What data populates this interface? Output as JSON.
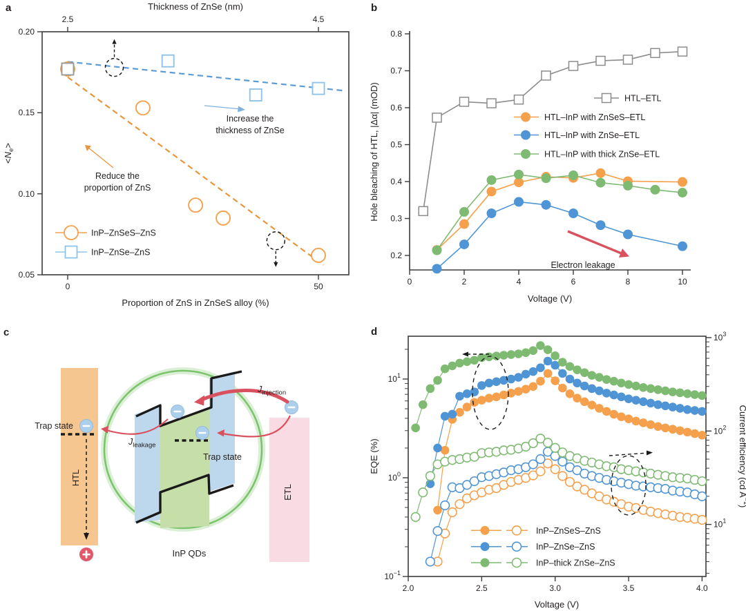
{
  "panel_letters": {
    "a": "a",
    "b": "b",
    "c": "c",
    "d": "d"
  },
  "colors": {
    "orange": "#F5A04C",
    "blue": "#4F94D5",
    "light_blue": "#8FC3E9",
    "green": "#7FBA72",
    "gray": "#8C8C8C",
    "red": "#D9505E"
  },
  "panel_a": {
    "top_axis_title": "Thickness of ZnSe (nm)",
    "top_ticks": [
      "2.5",
      "4.5"
    ],
    "y_ticks": [
      "0.20",
      "0.15",
      "0.10",
      "0.05"
    ],
    "x_ticks": [
      "0",
      "50"
    ],
    "x_axis_title": "Proportion of ZnS in ZnSeS alloy (%)",
    "y_label": {
      "pre": "<",
      "n": "N",
      "sub": "e",
      "post": ">"
    },
    "ann_increase": [
      "Increase the",
      "thickness of ZnSe"
    ],
    "ann_reduce": [
      "Reduce the",
      "proportion of ZnS"
    ],
    "legend": [
      "InP–ZnSeS–ZnS",
      "InP–ZnSe–ZnS"
    ]
  },
  "panel_b": {
    "y_label": "Hole bleaching of HTL, |Δα| (mOD)",
    "y_ticks": [
      "0.8",
      "0.7",
      "0.6",
      "0.5",
      "0.4",
      "0.3",
      "0.2"
    ],
    "x_ticks": [
      "0",
      "2",
      "4",
      "6",
      "8",
      "10"
    ],
    "x_axis_title": "Voltage (V)",
    "legend": [
      "HTL–ETL",
      "HTL–InP with ZnSeS–ETL",
      "HTL–InP with ZnSe–ETL",
      "HTL–InP with thick ZnSe–ETL"
    ],
    "ann_leakage": "Electron leakage"
  },
  "panel_c": {
    "trap_left": "Trap state",
    "trap_qd": "Trap state",
    "htl": "HTL",
    "etl": "ETL",
    "inp_qds": "InP QDs",
    "j_injection": {
      "j": "J",
      "sub": "injection"
    },
    "j_leakage": {
      "j": "J",
      "sub": "leakage"
    }
  },
  "panel_d": {
    "y_left_label": "EQE (%)",
    "y_right_label": {
      "pre": "Current efficiency (cd A",
      "sup": "−1",
      "post": ")"
    },
    "left_ticks": [
      {
        "b": "10",
        "e": "1"
      },
      {
        "b": "10",
        "e": "0"
      },
      {
        "b": "10",
        "e": "−1"
      }
    ],
    "right_ticks": [
      {
        "b": "10",
        "e": "3"
      },
      {
        "b": "10",
        "e": "2"
      },
      {
        "b": "10",
        "e": "1"
      }
    ],
    "x_ticks": [
      "2.0",
      "2.5",
      "3.0",
      "3.5",
      "4.0"
    ],
    "x_axis_title": "Voltage (V)",
    "legend": [
      "InP–ZnSeS–ZnS",
      "InP–ZnSe–ZnS",
      "InP–thick ZnSe–ZnS"
    ]
  },
  "chart_data": [
    {
      "id": "a",
      "type": "scatter",
      "xlabel": "Proportion of ZnS in ZnSeS alloy (%)",
      "x2label": "Thickness of ZnSe (nm)",
      "ylabel": "<Ne>",
      "xlim": [
        -5,
        56
      ],
      "ylim": [
        0.05,
        0.2
      ],
      "x_ticks": [
        0,
        50
      ],
      "x2_ticks": [
        2.5,
        4.5
      ],
      "y_ticks": [
        0.2,
        0.15,
        0.1,
        0.05
      ],
      "series": [
        {
          "name": "InP–ZnSeS–ZnS",
          "marker": "circle-open",
          "color": "#F5A04C",
          "points": [
            [
              0,
              0.177
            ],
            [
              15,
              0.153
            ],
            [
              25.5,
              0.093
            ],
            [
              31,
              0.085
            ],
            [
              50,
              0.062
            ]
          ],
          "trend": [
            [
              0,
              0.172
            ],
            [
              51,
              0.056
            ]
          ]
        },
        {
          "name": "InP–ZnSe–ZnS",
          "marker": "square-open",
          "color": "#8FC3E9",
          "first_point_color": "#9A9A9A",
          "points": [
            [
              0,
              0.177
            ],
            [
              20,
              0.182
            ],
            [
              37.5,
              0.161
            ],
            [
              50,
              0.165
            ]
          ],
          "trend": [
            [
              0,
              0.1815
            ],
            [
              55.5,
              0.1635
            ]
          ]
        }
      ],
      "highlight_circles": [
        {
          "x": 9.3,
          "y": 0.178,
          "arrow": "up"
        },
        {
          "x": 41.5,
          "y": 0.071,
          "arrow": "down"
        }
      ]
    },
    {
      "id": "b",
      "type": "line",
      "xlabel": "Voltage (V)",
      "ylabel": "Hole bleaching of HTL, |Δα| (mOD)",
      "xlim": [
        0,
        11.5
      ],
      "ylim": [
        0.155,
        0.8
      ],
      "x_ticks": [
        0,
        2,
        4,
        6,
        8,
        10
      ],
      "y_ticks": [
        0.8,
        0.7,
        0.6,
        0.5,
        0.4,
        0.3,
        0.2
      ],
      "series": [
        {
          "name": "HTL–ETL",
          "marker": "square-open",
          "color": "#8C8C8C",
          "x": [
            0.5,
            1,
            2,
            3,
            4,
            5,
            6,
            7,
            8,
            9,
            10
          ],
          "y": [
            0.32,
            0.573,
            0.616,
            0.612,
            0.622,
            0.687,
            0.713,
            0.727,
            0.73,
            0.748,
            0.752
          ]
        },
        {
          "name": "HTL–InP with ZnSeS–ETL",
          "marker": "circle",
          "color": "#F5A04C",
          "x": [
            1,
            2,
            3,
            4,
            5,
            6,
            7,
            8,
            10
          ],
          "y": [
            0.215,
            0.285,
            0.373,
            0.398,
            0.413,
            0.41,
            0.423,
            0.401,
            0.399
          ]
        },
        {
          "name": "HTL–InP with ZnSe–ETL",
          "marker": "circle",
          "color": "#4F94D5",
          "x": [
            1,
            2,
            3,
            4,
            5,
            6,
            7,
            8,
            10
          ],
          "y": [
            0.164,
            0.23,
            0.314,
            0.345,
            0.337,
            0.314,
            0.282,
            0.257,
            0.225
          ]
        },
        {
          "name": "HTL–InP with thick ZnSe–ETL",
          "marker": "circle",
          "color": "#7FBA72",
          "x": [
            1,
            2,
            3,
            4,
            5,
            6,
            7,
            8,
            9,
            10
          ],
          "y": [
            0.214,
            0.318,
            0.404,
            0.419,
            0.409,
            0.417,
            0.397,
            0.389,
            0.378,
            0.37
          ]
        }
      ]
    },
    {
      "id": "d",
      "type": "line",
      "xlabel": "Voltage (V)",
      "ylabel_left": "EQE (%)",
      "ylabel_right": "Current efficiency (cd A−1)",
      "xlim": [
        2.0,
        4.03
      ],
      "ylim_left_log": [
        0.1,
        27
      ],
      "ylim_right_log": [
        2.8,
        1000
      ],
      "x_ticks": [
        2.0,
        2.5,
        3.0,
        3.5,
        4.0
      ],
      "voltages": [
        2.05,
        2.1,
        2.15,
        2.2,
        2.25,
        2.3,
        2.35,
        2.4,
        2.45,
        2.5,
        2.55,
        2.6,
        2.65,
        2.7,
        2.75,
        2.8,
        2.85,
        2.9,
        2.95,
        3.0,
        3.05,
        3.1,
        3.15,
        3.2,
        3.25,
        3.3,
        3.35,
        3.4,
        3.45,
        3.5,
        3.55,
        3.6,
        3.65,
        3.7,
        3.75,
        3.8,
        3.85,
        3.9,
        3.95,
        4.0
      ],
      "series": [
        {
          "name": "InP–ZnSeS–ZnS EQE",
          "axis": "left",
          "marker": "circle",
          "color": "#F5A04C",
          "values": [
            null,
            null,
            null,
            0.47,
            1.9,
            3.9,
            4.6,
            5.2,
            5.8,
            6.1,
            6.4,
            6.6,
            6.9,
            7.2,
            7.5,
            7.9,
            8.4,
            9.5,
            11.4,
            9.6,
            8.1,
            7.1,
            6.4,
            5.9,
            5.45,
            5.05,
            4.7,
            4.4,
            4.15,
            3.95,
            3.75,
            3.6,
            3.45,
            3.3,
            3.2,
            3.1,
            3.0,
            2.9,
            2.8,
            2.7
          ]
        },
        {
          "name": "InP–ZnSe–ZnS EQE",
          "axis": "left",
          "marker": "circle",
          "color": "#4F94D5",
          "values": [
            null,
            null,
            0.87,
            2.0,
            4.2,
            4.4,
            6.7,
            7.1,
            7.4,
            8.6,
            9.1,
            9.4,
            9.7,
            10.0,
            10.4,
            11.2,
            11.9,
            13.0,
            15.2,
            13.8,
            11.4,
            10.0,
            9.1,
            8.5,
            8.0,
            7.6,
            7.2,
            6.9,
            6.6,
            6.3,
            6.1,
            5.9,
            5.7,
            5.5,
            5.35,
            5.2,
            5.05,
            4.9,
            4.8,
            4.7
          ]
        },
        {
          "name": "InP–thick ZnSe–ZnS EQE",
          "axis": "left",
          "marker": "circle",
          "color": "#7FBA72",
          "values": [
            3.2,
            5.5,
            8.0,
            9.7,
            12.7,
            13.6,
            14.5,
            15.0,
            15.5,
            16.5,
            16.8,
            17.1,
            17.4,
            17.7,
            18.0,
            18.5,
            19.4,
            21.8,
            19.8,
            17.2,
            14.8,
            13.4,
            12.4,
            11.6,
            10.9,
            10.4,
            9.9,
            9.5,
            9.1,
            8.8,
            8.5,
            8.2,
            8.0,
            7.8,
            7.6,
            7.4,
            7.25,
            7.1,
            6.95,
            6.8
          ]
        },
        {
          "name": "InP–ZnSeS–ZnS CE",
          "axis": "right",
          "marker": "circle-open",
          "color": "#F5A04C",
          "values": [
            null,
            null,
            null,
            4,
            8,
            13.5,
            16.5,
            19,
            20.5,
            22,
            23.5,
            24.5,
            26.5,
            28.5,
            30,
            31.5,
            33.5,
            37,
            45,
            39,
            33,
            28.5,
            25.5,
            23.5,
            21.5,
            20,
            18.5,
            17.5,
            16.5,
            15.5,
            15,
            14.3,
            13.7,
            13.2,
            12.8,
            12.4,
            12,
            11.8,
            11.5,
            11.2
          ]
        },
        {
          "name": "InP–ZnSe–ZnS CE",
          "axis": "right",
          "marker": "circle-open",
          "color": "#4F94D5",
          "values": [
            null,
            null,
            4,
            8.5,
            16,
            25,
            24.5,
            26.5,
            29,
            32,
            33,
            34.5,
            36,
            38,
            39,
            41,
            44,
            50,
            60,
            54,
            47,
            41,
            38,
            35,
            33,
            31.5,
            30,
            29,
            28,
            27,
            26,
            25.5,
            25,
            24.5,
            24,
            23,
            22.5,
            22,
            21,
            20
          ]
        },
        {
          "name": "InP–thick ZnSe–ZnS CE",
          "axis": "right",
          "marker": "circle-open",
          "color": "#7FBA72",
          "values": [
            12,
            22,
            33,
            44,
            47,
            49,
            50,
            52,
            53,
            58,
            59,
            60,
            62,
            63,
            65,
            68,
            74,
            83,
            75,
            66,
            59,
            54,
            51,
            48,
            46,
            44,
            42,
            41,
            39,
            38,
            37,
            36,
            35,
            34,
            33,
            32,
            31.5,
            31,
            30,
            29
          ]
        }
      ]
    }
  ]
}
